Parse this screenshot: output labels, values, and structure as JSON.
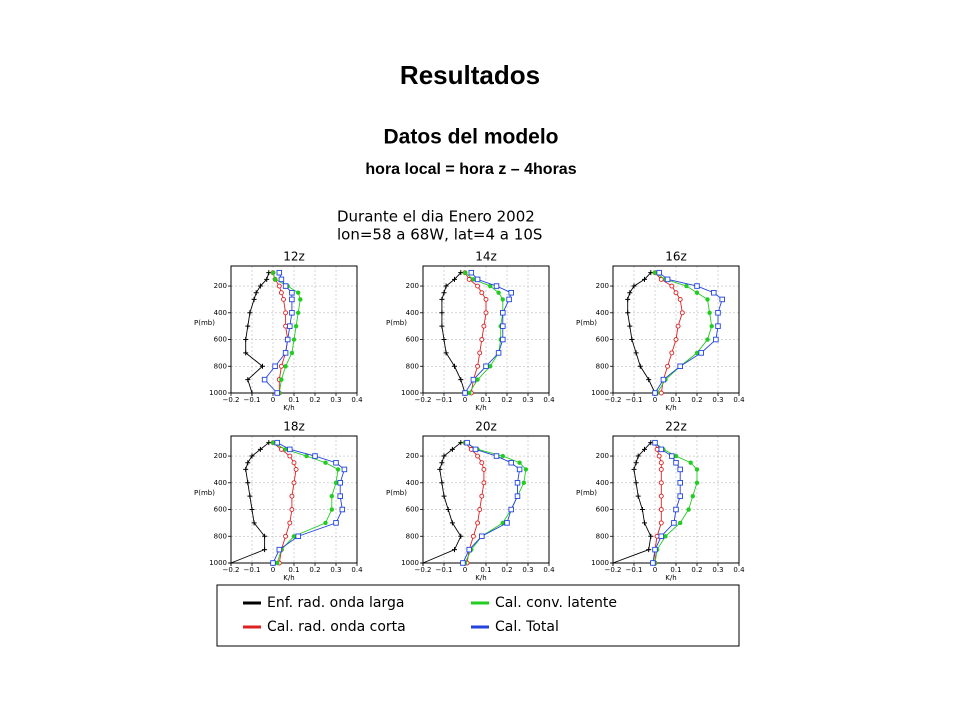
{
  "header": {
    "title": "Resultados",
    "subtitle": "Datos del modelo",
    "note": "hora local = hora z – 4horas"
  },
  "figure": {
    "title_lines": [
      "Durante el dia Enero 2002",
      "lon=58 a 68W, lat=4 a 10S"
    ]
  },
  "legend": [
    {
      "name": "Enf. rad. onda larga",
      "color": "#000000"
    },
    {
      "name": "Cal. conv. latente",
      "color": "#22cc22"
    },
    {
      "name": "Cal. rad. onda corta",
      "color": "#dd2222"
    },
    {
      "name": "Cal. Total",
      "color": "#2244dd"
    }
  ],
  "chart_data": [
    {
      "type": "line",
      "title": "12z",
      "xlabel": "K/h",
      "ylabel": "P(mb)",
      "y": [
        100,
        150,
        200,
        250,
        300,
        400,
        500,
        600,
        700,
        800,
        900,
        1000
      ],
      "xlim": [
        -0.2,
        0.4
      ],
      "xticks": [
        {
          "value": -0.2,
          "label": "−0.2"
        },
        {
          "value": -0.1,
          "label": "−0.1"
        },
        0,
        0.1,
        0.2,
        0.3,
        0.4
      ],
      "ylim": [
        1000,
        50
      ],
      "yticks": [
        200,
        400,
        600,
        800,
        1000
      ],
      "grid": true,
      "series": [
        {
          "color": "#000000",
          "marker": "plus",
          "values": [
            -0.02,
            -0.03,
            -0.06,
            -0.08,
            -0.09,
            -0.11,
            -0.12,
            -0.13,
            -0.13,
            -0.05,
            -0.12,
            -0.1
          ]
        },
        {
          "color": "#dd2222",
          "marker": "circle",
          "values": [
            0.0,
            0.01,
            0.03,
            0.04,
            0.05,
            0.06,
            0.06,
            0.07,
            0.06,
            0.04,
            0.03,
            0.03
          ]
        },
        {
          "color": "#22cc22",
          "marker": "dot",
          "values": [
            0.0,
            0.01,
            0.07,
            0.12,
            0.13,
            0.12,
            0.11,
            0.1,
            0.09,
            0.06,
            0.04,
            0.03
          ]
        },
        {
          "color": "#2244dd",
          "marker": "square",
          "values": [
            0.03,
            0.04,
            0.06,
            0.09,
            0.09,
            0.09,
            0.08,
            0.07,
            0.06,
            0.01,
            -0.04,
            0.02
          ]
        }
      ]
    },
    {
      "type": "line",
      "title": "14z",
      "xlabel": "K/h",
      "ylabel": "P(mb)",
      "y": [
        100,
        150,
        200,
        250,
        300,
        400,
        500,
        600,
        700,
        800,
        900,
        1000
      ],
      "xlim": [
        -0.2,
        0.4
      ],
      "xticks": [
        {
          "value": -0.2,
          "label": "−0.2"
        },
        {
          "value": -0.1,
          "label": "−0.1"
        },
        0,
        0.1,
        0.2,
        0.3,
        0.4
      ],
      "ylim": [
        1000,
        50
      ],
      "yticks": [
        200,
        400,
        600,
        800,
        1000
      ],
      "grid": true,
      "series": [
        {
          "color": "#000000",
          "marker": "plus",
          "values": [
            -0.02,
            -0.05,
            -0.09,
            -0.1,
            -0.11,
            -0.11,
            -0.11,
            -0.1,
            -0.09,
            -0.05,
            -0.02,
            0.0
          ]
        },
        {
          "color": "#dd2222",
          "marker": "circle",
          "values": [
            0.0,
            0.02,
            0.06,
            0.08,
            0.1,
            0.1,
            0.09,
            0.08,
            0.07,
            0.06,
            0.04,
            0.03
          ]
        },
        {
          "color": "#22cc22",
          "marker": "dot",
          "values": [
            0.0,
            0.04,
            0.12,
            0.16,
            0.18,
            0.18,
            0.17,
            0.17,
            0.16,
            0.12,
            0.06,
            0.02
          ]
        },
        {
          "color": "#2244dd",
          "marker": "square",
          "values": [
            0.03,
            0.06,
            0.15,
            0.22,
            0.21,
            0.18,
            0.18,
            0.18,
            0.16,
            0.1,
            0.04,
            0.0
          ]
        }
      ]
    },
    {
      "type": "line",
      "title": "16z",
      "xlabel": "K/h",
      "ylabel": "P(mb)",
      "y": [
        100,
        150,
        200,
        250,
        300,
        400,
        500,
        600,
        700,
        800,
        900,
        1000
      ],
      "xlim": [
        -0.2,
        0.4
      ],
      "xticks": [
        {
          "value": -0.2,
          "label": "−0.2"
        },
        {
          "value": -0.1,
          "label": "−0.1"
        },
        0,
        0.1,
        0.2,
        0.3,
        0.4
      ],
      "ylim": [
        1000,
        50
      ],
      "yticks": [
        200,
        400,
        600,
        800,
        1000
      ],
      "grid": true,
      "series": [
        {
          "color": "#000000",
          "marker": "plus",
          "values": [
            -0.02,
            -0.05,
            -0.1,
            -0.12,
            -0.13,
            -0.13,
            -0.12,
            -0.11,
            -0.09,
            -0.07,
            -0.03,
            0.0
          ]
        },
        {
          "color": "#dd2222",
          "marker": "circle",
          "values": [
            0.0,
            0.03,
            0.08,
            0.1,
            0.12,
            0.13,
            0.11,
            0.1,
            0.08,
            0.06,
            0.04,
            0.03
          ]
        },
        {
          "color": "#22cc22",
          "marker": "dot",
          "values": [
            0.0,
            0.05,
            0.15,
            0.2,
            0.25,
            0.26,
            0.27,
            0.25,
            0.2,
            0.12,
            0.05,
            0.01
          ]
        },
        {
          "color": "#2244dd",
          "marker": "square",
          "values": [
            0.02,
            0.06,
            0.2,
            0.28,
            0.32,
            0.3,
            0.3,
            0.29,
            0.22,
            0.12,
            0.04,
            0.0
          ]
        }
      ]
    },
    {
      "type": "line",
      "title": "18z",
      "xlabel": "K/h",
      "ylabel": "P(mb)",
      "y": [
        100,
        150,
        200,
        250,
        300,
        400,
        500,
        600,
        700,
        800,
        900,
        1000
      ],
      "xlim": [
        -0.2,
        0.4
      ],
      "xticks": [
        {
          "value": -0.2,
          "label": "−0.2"
        },
        {
          "value": -0.1,
          "label": "−0.1"
        },
        0,
        0.1,
        0.2,
        0.3,
        0.4
      ],
      "ylim": [
        1000,
        50
      ],
      "yticks": [
        200,
        400,
        600,
        800,
        1000
      ],
      "grid": true,
      "series": [
        {
          "color": "#000000",
          "marker": "plus",
          "values": [
            -0.02,
            -0.06,
            -0.1,
            -0.12,
            -0.13,
            -0.12,
            -0.11,
            -0.1,
            -0.09,
            -0.04,
            -0.04,
            -0.2
          ]
        },
        {
          "color": "#dd2222",
          "marker": "circle",
          "values": [
            0.0,
            0.04,
            0.08,
            0.1,
            0.11,
            0.1,
            0.09,
            0.09,
            0.08,
            0.06,
            0.04,
            0.03
          ]
        },
        {
          "color": "#22cc22",
          "marker": "dot",
          "values": [
            0.0,
            0.06,
            0.16,
            0.25,
            0.31,
            0.3,
            0.28,
            0.28,
            0.25,
            0.1,
            0.04,
            0.02
          ]
        },
        {
          "color": "#2244dd",
          "marker": "square",
          "values": [
            0.02,
            0.08,
            0.2,
            0.3,
            0.34,
            0.32,
            0.32,
            0.33,
            0.3,
            0.12,
            0.03,
            0.0
          ]
        }
      ]
    },
    {
      "type": "line",
      "title": "20z",
      "xlabel": "K/h",
      "ylabel": "P(mb)",
      "y": [
        100,
        150,
        200,
        250,
        300,
        400,
        500,
        600,
        700,
        800,
        900,
        1000
      ],
      "xlim": [
        -0.2,
        0.4
      ],
      "xticks": [
        {
          "value": -0.2,
          "label": "−0.2"
        },
        {
          "value": -0.1,
          "label": "−0.1"
        },
        0,
        0.1,
        0.2,
        0.3,
        0.4
      ],
      "ylim": [
        1000,
        50
      ],
      "yticks": [
        200,
        400,
        600,
        800,
        1000
      ],
      "grid": true,
      "series": [
        {
          "color": "#000000",
          "marker": "plus",
          "values": [
            -0.02,
            -0.06,
            -0.1,
            -0.11,
            -0.12,
            -0.11,
            -0.1,
            -0.08,
            -0.06,
            -0.02,
            -0.05,
            -0.2
          ]
        },
        {
          "color": "#dd2222",
          "marker": "circle",
          "values": [
            0.0,
            0.03,
            0.06,
            0.08,
            0.09,
            0.09,
            0.08,
            0.07,
            0.06,
            0.04,
            0.02,
            0.01
          ]
        },
        {
          "color": "#22cc22",
          "marker": "dot",
          "values": [
            0.0,
            0.06,
            0.18,
            0.26,
            0.29,
            0.28,
            0.25,
            0.22,
            0.18,
            0.08,
            0.03,
            0.0
          ]
        },
        {
          "color": "#2244dd",
          "marker": "square",
          "values": [
            0.01,
            0.05,
            0.15,
            0.22,
            0.26,
            0.25,
            0.25,
            0.22,
            0.2,
            0.08,
            0.02,
            -0.01
          ]
        }
      ]
    },
    {
      "type": "line",
      "title": "22z",
      "xlabel": "K/h",
      "ylabel": "P(mb)",
      "y": [
        100,
        150,
        200,
        250,
        300,
        400,
        500,
        600,
        700,
        800,
        900,
        1000
      ],
      "xlim": [
        -0.2,
        0.4
      ],
      "xticks": [
        {
          "value": -0.2,
          "label": "−0.2"
        },
        {
          "value": -0.1,
          "label": "−0.1"
        },
        0,
        0.1,
        0.2,
        0.3,
        0.4
      ],
      "ylim": [
        1000,
        50
      ],
      "yticks": [
        200,
        400,
        600,
        800,
        1000
      ],
      "grid": true,
      "series": [
        {
          "color": "#000000",
          "marker": "plus",
          "values": [
            -0.02,
            -0.05,
            -0.08,
            -0.09,
            -0.1,
            -0.09,
            -0.08,
            -0.06,
            -0.05,
            -0.02,
            -0.03,
            -0.2
          ]
        },
        {
          "color": "#dd2222",
          "marker": "circle",
          "values": [
            0.0,
            0.01,
            0.02,
            0.03,
            0.03,
            0.03,
            0.03,
            0.03,
            0.03,
            0.01,
            0.0,
            0.0
          ]
        },
        {
          "color": "#22cc22",
          "marker": "dot",
          "values": [
            0.0,
            0.04,
            0.1,
            0.17,
            0.2,
            0.2,
            0.18,
            0.16,
            0.12,
            0.05,
            0.01,
            0.0
          ]
        },
        {
          "color": "#2244dd",
          "marker": "square",
          "values": [
            0.0,
            0.03,
            0.08,
            0.1,
            0.12,
            0.12,
            0.12,
            0.1,
            0.09,
            0.03,
            0.0,
            -0.01
          ]
        }
      ]
    }
  ]
}
